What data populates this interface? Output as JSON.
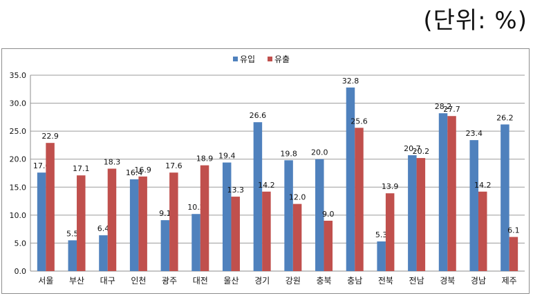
{
  "unit_label": "(단위: %)",
  "chart_data": {
    "type": "bar",
    "categories": [
      "서울",
      "부산",
      "대구",
      "인천",
      "광주",
      "대전",
      "울산",
      "경기",
      "강원",
      "충북",
      "충남",
      "전북",
      "전남",
      "경북",
      "경남",
      "제주"
    ],
    "series": [
      {
        "name": "유입",
        "color": "#4f81bd",
        "values": [
          17.6,
          5.5,
          6.4,
          16.4,
          9.1,
          10.2,
          19.4,
          26.6,
          19.8,
          20.0,
          32.8,
          5.3,
          20.7,
          28.2,
          23.4,
          26.2
        ]
      },
      {
        "name": "유출",
        "color": "#c0504d",
        "values": [
          22.9,
          17.1,
          18.3,
          16.9,
          17.6,
          18.9,
          13.3,
          14.2,
          12.0,
          9.0,
          25.6,
          13.9,
          20.2,
          27.7,
          14.2,
          6.1
        ]
      }
    ],
    "ylim": [
      0,
      35
    ],
    "yticks": [
      "0.0",
      "5.0",
      "10.0",
      "15.0",
      "20.0",
      "25.0",
      "30.0",
      "35.0"
    ],
    "legend": "top-center",
    "grid": true
  }
}
